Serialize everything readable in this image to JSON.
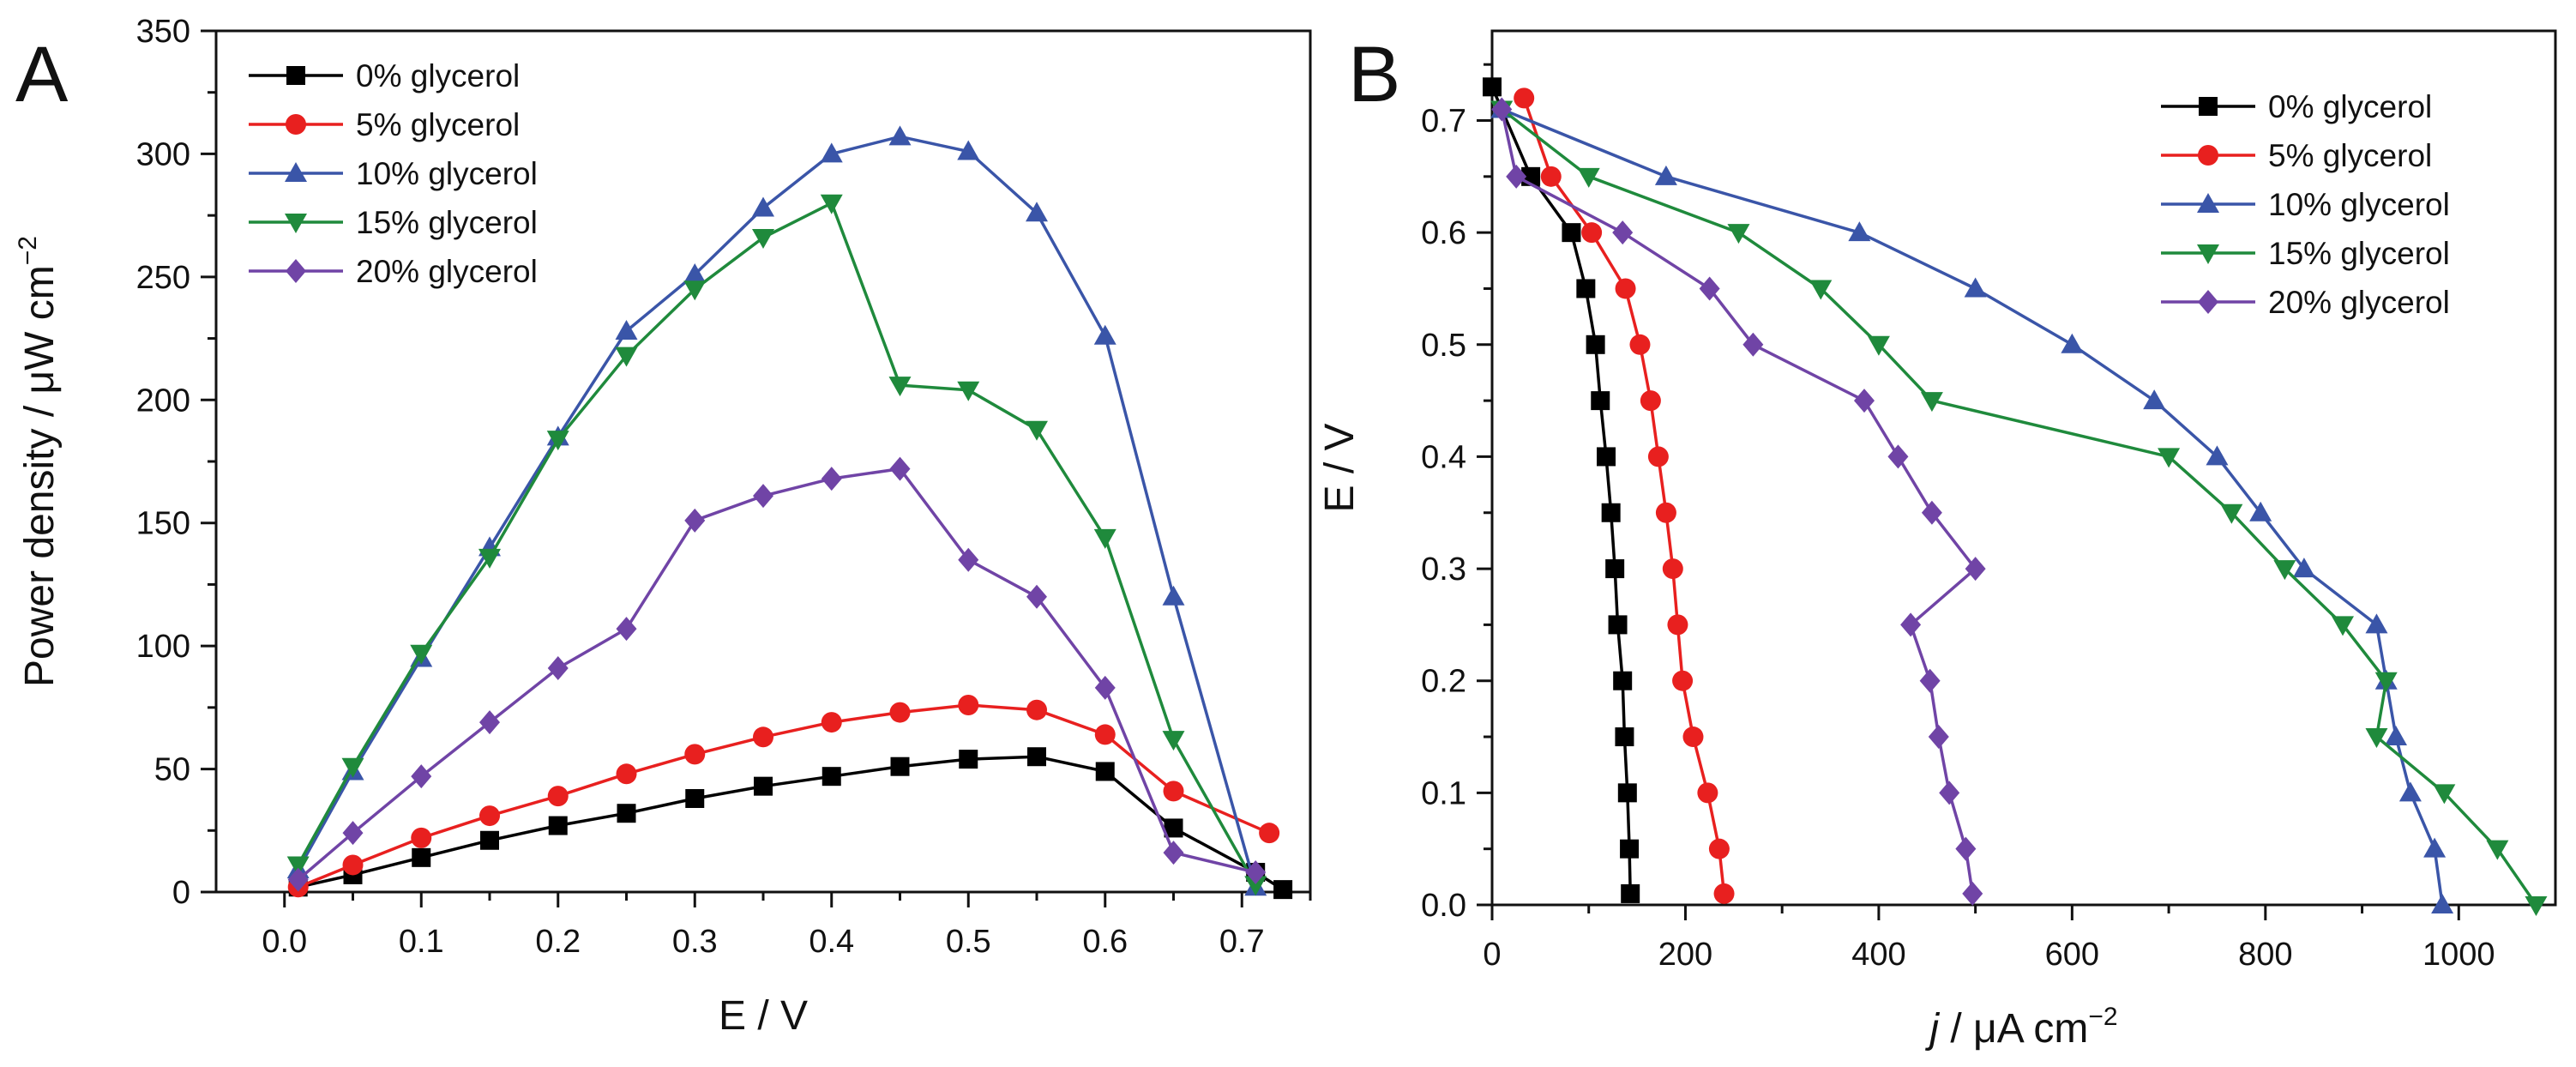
{
  "chart_data": [
    {
      "panel": "A",
      "type": "line",
      "xlabel": "E / V",
      "ylabel": "Power density / μW cm",
      "ylabel_sup": "−2",
      "xlim": [
        -0.05,
        0.75
      ],
      "ylim": [
        0,
        350
      ],
      "xticks": [
        0.0,
        0.1,
        0.2,
        0.3,
        0.4,
        0.5,
        0.6,
        0.7
      ],
      "xtick_labels": [
        "0.0",
        "0.1",
        "0.2",
        "0.3",
        "0.4",
        "0.5",
        "0.6",
        "0.7"
      ],
      "yticks": [
        0,
        50,
        100,
        150,
        200,
        250,
        300,
        350
      ],
      "ytick_labels": [
        "0",
        "50",
        "100",
        "150",
        "200",
        "250",
        "300",
        "350"
      ],
      "legend_position": "top-left",
      "series": [
        {
          "name": "0% glycerol",
          "color": "#000000",
          "marker": "square",
          "points": [
            [
              0.01,
              2
            ],
            [
              0.05,
              7
            ],
            [
              0.1,
              14
            ],
            [
              0.15,
              21
            ],
            [
              0.2,
              27
            ],
            [
              0.25,
              32
            ],
            [
              0.3,
              38
            ],
            [
              0.35,
              43
            ],
            [
              0.4,
              47
            ],
            [
              0.45,
              51
            ],
            [
              0.5,
              54
            ],
            [
              0.55,
              55
            ],
            [
              0.6,
              49
            ],
            [
              0.65,
              26
            ],
            [
              0.71,
              8
            ],
            [
              0.73,
              1
            ]
          ]
        },
        {
          "name": "5% glycerol",
          "color": "#e8201f",
          "marker": "circle",
          "points": [
            [
              0.01,
              2
            ],
            [
              0.05,
              11
            ],
            [
              0.1,
              22
            ],
            [
              0.15,
              31
            ],
            [
              0.2,
              39
            ],
            [
              0.25,
              48
            ],
            [
              0.3,
              56
            ],
            [
              0.35,
              63
            ],
            [
              0.4,
              69
            ],
            [
              0.45,
              73
            ],
            [
              0.5,
              76
            ],
            [
              0.55,
              74
            ],
            [
              0.6,
              64
            ],
            [
              0.65,
              41
            ],
            [
              0.72,
              24
            ]
          ]
        },
        {
          "name": "10% glycerol",
          "color": "#3a55a8",
          "marker": "triangle-up",
          "points": [
            [
              0.01,
              9
            ],
            [
              0.05,
              49
            ],
            [
              0.1,
              95
            ],
            [
              0.15,
              140
            ],
            [
              0.2,
              185
            ],
            [
              0.25,
              228
            ],
            [
              0.3,
              251
            ],
            [
              0.35,
              278
            ],
            [
              0.4,
              300
            ],
            [
              0.45,
              307
            ],
            [
              0.5,
              301
            ],
            [
              0.55,
              276
            ],
            [
              0.6,
              226
            ],
            [
              0.65,
              120
            ],
            [
              0.71,
              2
            ]
          ]
        },
        {
          "name": "15% glycerol",
          "color": "#1f8a3c",
          "marker": "triangle-down",
          "points": [
            [
              0.01,
              11
            ],
            [
              0.05,
              51
            ],
            [
              0.1,
              97
            ],
            [
              0.15,
              136
            ],
            [
              0.2,
              184
            ],
            [
              0.25,
              218
            ],
            [
              0.3,
              245
            ],
            [
              0.35,
              266
            ],
            [
              0.4,
              280
            ],
            [
              0.45,
              206
            ],
            [
              0.5,
              204
            ],
            [
              0.55,
              188
            ],
            [
              0.6,
              144
            ],
            [
              0.65,
              62
            ],
            [
              0.71,
              3
            ]
          ]
        },
        {
          "name": "20% glycerol",
          "color": "#7044a6",
          "marker": "diamond",
          "points": [
            [
              0.01,
              5
            ],
            [
              0.05,
              24
            ],
            [
              0.1,
              47
            ],
            [
              0.15,
              69
            ],
            [
              0.2,
              91
            ],
            [
              0.25,
              107
            ],
            [
              0.3,
              151
            ],
            [
              0.35,
              161
            ],
            [
              0.4,
              168
            ],
            [
              0.45,
              172
            ],
            [
              0.5,
              135
            ],
            [
              0.55,
              120
            ],
            [
              0.6,
              83
            ],
            [
              0.65,
              16
            ],
            [
              0.71,
              8
            ]
          ]
        }
      ]
    },
    {
      "panel": "B",
      "type": "line",
      "xlabel_italic": "j",
      "xlabel": " / μA cm",
      "xlabel_sup": "−2",
      "ylabel": "E / V",
      "xlim": [
        0,
        1100
      ],
      "ylim": [
        0,
        0.78
      ],
      "xticks": [
        0,
        200,
        400,
        600,
        800,
        1000
      ],
      "xtick_labels": [
        "0",
        "200",
        "400",
        "600",
        "800",
        "1000"
      ],
      "yticks": [
        0.0,
        0.1,
        0.2,
        0.3,
        0.4,
        0.5,
        0.6,
        0.7
      ],
      "ytick_labels": [
        "0.0",
        "0.1",
        "0.2",
        "0.3",
        "0.4",
        "0.5",
        "0.6",
        "0.7"
      ],
      "legend_position": "top-right",
      "series": [
        {
          "name": "0% glycerol",
          "color": "#000000",
          "marker": "square",
          "points": [
            [
              0,
              0.73
            ],
            [
              40,
              0.65
            ],
            [
              82,
              0.6
            ],
            [
              97,
              0.55
            ],
            [
              107,
              0.5
            ],
            [
              112,
              0.45
            ],
            [
              118,
              0.4
            ],
            [
              123,
              0.35
            ],
            [
              127,
              0.3
            ],
            [
              130,
              0.25
            ],
            [
              135,
              0.2
            ],
            [
              137,
              0.15
            ],
            [
              140,
              0.1
            ],
            [
              142,
              0.05
            ],
            [
              143,
              0.01
            ]
          ]
        },
        {
          "name": "5% glycerol",
          "color": "#e8201f",
          "marker": "circle",
          "points": [
            [
              33,
              0.72
            ],
            [
              61,
              0.65
            ],
            [
              103,
              0.6
            ],
            [
              138,
              0.55
            ],
            [
              153,
              0.5
            ],
            [
              164,
              0.45
            ],
            [
              172,
              0.4
            ],
            [
              180,
              0.35
            ],
            [
              187,
              0.3
            ],
            [
              192,
              0.25
            ],
            [
              197,
              0.2
            ],
            [
              208,
              0.15
            ],
            [
              223,
              0.1
            ],
            [
              235,
              0.05
            ],
            [
              240,
              0.01
            ]
          ]
        },
        {
          "name": "10% glycerol",
          "color": "#3a55a8",
          "marker": "triangle-up",
          "points": [
            [
              10,
              0.71
            ],
            [
              180,
              0.65
            ],
            [
              380,
              0.6
            ],
            [
              500,
              0.55
            ],
            [
              600,
              0.5
            ],
            [
              685,
              0.45
            ],
            [
              750,
              0.4
            ],
            [
              795,
              0.35
            ],
            [
              840,
              0.3
            ],
            [
              915,
              0.25
            ],
            [
              925,
              0.2
            ],
            [
              935,
              0.15
            ],
            [
              950,
              0.1
            ],
            [
              975,
              0.05
            ],
            [
              983,
              0.0
            ]
          ]
        },
        {
          "name": "15% glycerol",
          "color": "#1f8a3c",
          "marker": "triangle-down",
          "points": [
            [
              10,
              0.71
            ],
            [
              100,
              0.65
            ],
            [
              255,
              0.6
            ],
            [
              340,
              0.55
            ],
            [
              400,
              0.5
            ],
            [
              455,
              0.45
            ],
            [
              700,
              0.4
            ],
            [
              765,
              0.35
            ],
            [
              820,
              0.3
            ],
            [
              880,
              0.25
            ],
            [
              925,
              0.2
            ],
            [
              915,
              0.15
            ],
            [
              985,
              0.1
            ],
            [
              1040,
              0.05
            ],
            [
              1080,
              0.0
            ]
          ]
        },
        {
          "name": "20% glycerol",
          "color": "#7044a6",
          "marker": "diamond",
          "points": [
            [
              10,
              0.71
            ],
            [
              25,
              0.65
            ],
            [
              135,
              0.6
            ],
            [
              225,
              0.55
            ],
            [
              270,
              0.5
            ],
            [
              385,
              0.45
            ],
            [
              420,
              0.4
            ],
            [
              455,
              0.35
            ],
            [
              500,
              0.3
            ],
            [
              433,
              0.25
            ],
            [
              453,
              0.2
            ],
            [
              462,
              0.15
            ],
            [
              473,
              0.1
            ],
            [
              490,
              0.05
            ],
            [
              497,
              0.01
            ]
          ]
        }
      ]
    }
  ]
}
